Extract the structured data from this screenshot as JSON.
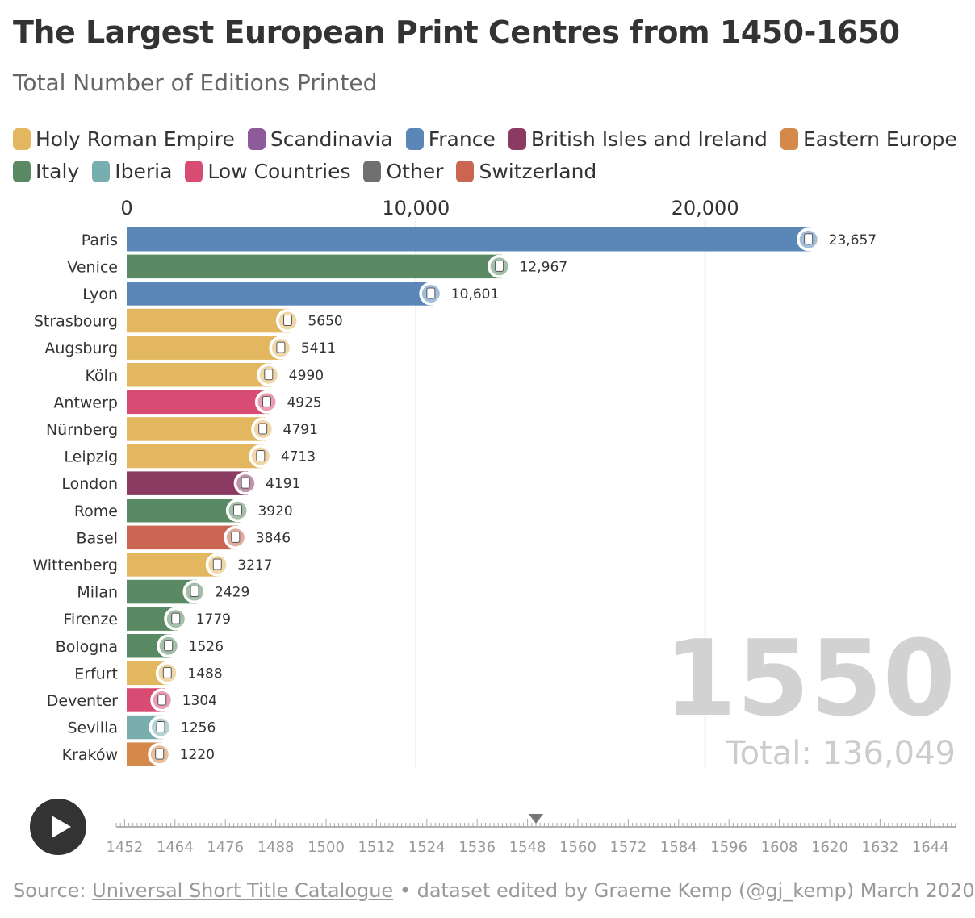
{
  "header": {
    "title": "The Largest European Print Centres from 1450-1650",
    "subtitle": "Total Number of Editions Printed"
  },
  "legend": {
    "row1": [
      {
        "label": "Holy Roman Empire",
        "color": "#e3b75f"
      },
      {
        "label": "Scandinavia",
        "color": "#8d5a9a"
      },
      {
        "label": "France",
        "color": "#5a87b8"
      },
      {
        "label": "British Isles and Ireland",
        "color": "#8b3a62"
      },
      {
        "label": "Eastern Europe",
        "color": "#d4894a"
      }
    ],
    "row2": [
      {
        "label": "Italy",
        "color": "#5a8a63"
      },
      {
        "label": "Iberia",
        "color": "#78aeae"
      },
      {
        "label": "Low Countries",
        "color": "#d84c74"
      },
      {
        "label": "Other",
        "color": "#707070"
      },
      {
        "label": "Switzerland",
        "color": "#c96551"
      }
    ]
  },
  "chart_data": {
    "type": "bar",
    "orientation": "horizontal",
    "title": "The Largest European Print Centres from 1450-1650",
    "subtitle": "Total Number of Editions Printed",
    "xlim": [
      0,
      29500
    ],
    "x_ticks": [
      0,
      10000,
      20000
    ],
    "x_tick_labels": [
      "0",
      "10,000",
      "20,000"
    ],
    "grid": true,
    "bars": [
      {
        "city": "Paris",
        "value": 23657,
        "label": "23,657",
        "region": "France",
        "color": "#5a87b8"
      },
      {
        "city": "Venice",
        "value": 12967,
        "label": "12,967",
        "region": "Italy",
        "color": "#5a8a63"
      },
      {
        "city": "Lyon",
        "value": 10601,
        "label": "10,601",
        "region": "France",
        "color": "#5a87b8"
      },
      {
        "city": "Strasbourg",
        "value": 5650,
        "label": "5650",
        "region": "Holy Roman Empire",
        "color": "#e3b75f"
      },
      {
        "city": "Augsburg",
        "value": 5411,
        "label": "5411",
        "region": "Holy Roman Empire",
        "color": "#e3b75f"
      },
      {
        "city": "Köln",
        "value": 4990,
        "label": "4990",
        "region": "Holy Roman Empire",
        "color": "#e3b75f"
      },
      {
        "city": "Antwerp",
        "value": 4925,
        "label": "4925",
        "region": "Low Countries",
        "color": "#d84c74"
      },
      {
        "city": "Nürnberg",
        "value": 4791,
        "label": "4791",
        "region": "Holy Roman Empire",
        "color": "#e3b75f"
      },
      {
        "city": "Leipzig",
        "value": 4713,
        "label": "4713",
        "region": "Holy Roman Empire",
        "color": "#e3b75f"
      },
      {
        "city": "London",
        "value": 4191,
        "label": "4191",
        "region": "British Isles and Ireland",
        "color": "#8b3a62"
      },
      {
        "city": "Rome",
        "value": 3920,
        "label": "3920",
        "region": "Italy",
        "color": "#5a8a63"
      },
      {
        "city": "Basel",
        "value": 3846,
        "label": "3846",
        "region": "Switzerland",
        "color": "#c96551"
      },
      {
        "city": "Wittenberg",
        "value": 3217,
        "label": "3217",
        "region": "Holy Roman Empire",
        "color": "#e3b75f"
      },
      {
        "city": "Milan",
        "value": 2429,
        "label": "2429",
        "region": "Italy",
        "color": "#5a8a63"
      },
      {
        "city": "Firenze",
        "value": 1779,
        "label": "1779",
        "region": "Italy",
        "color": "#5a8a63"
      },
      {
        "city": "Bologna",
        "value": 1526,
        "label": "1526",
        "region": "Italy",
        "color": "#5a8a63"
      },
      {
        "city": "Erfurt",
        "value": 1488,
        "label": "1488",
        "region": "Holy Roman Empire",
        "color": "#e3b75f"
      },
      {
        "city": "Deventer",
        "value": 1304,
        "label": "1304",
        "region": "Low Countries",
        "color": "#d84c74"
      },
      {
        "city": "Sevilla",
        "value": 1256,
        "label": "1256",
        "region": "Iberia",
        "color": "#78aeae"
      },
      {
        "city": "Kraków",
        "value": 1220,
        "label": "1220",
        "region": "Eastern Europe",
        "color": "#d4894a"
      }
    ],
    "year_label": "1550",
    "total_label": "Total: 136,049"
  },
  "timeline": {
    "start_year": 1450,
    "end_year": 1650,
    "labels": [
      "1452",
      "1464",
      "1476",
      "1488",
      "1500",
      "1512",
      "1524",
      "1536",
      "1548",
      "1560",
      "1572",
      "1584",
      "1596",
      "1608",
      "1620",
      "1632",
      "1644"
    ],
    "current_year": 1550
  },
  "controls": {
    "play_icon": "play-icon"
  },
  "footer": {
    "source_prefix": "Source:",
    "source_link": "Universal Short Title Catalogue",
    "source_suffix": "• dataset edited by Graeme Kemp (@gj_kemp) March 2020"
  }
}
